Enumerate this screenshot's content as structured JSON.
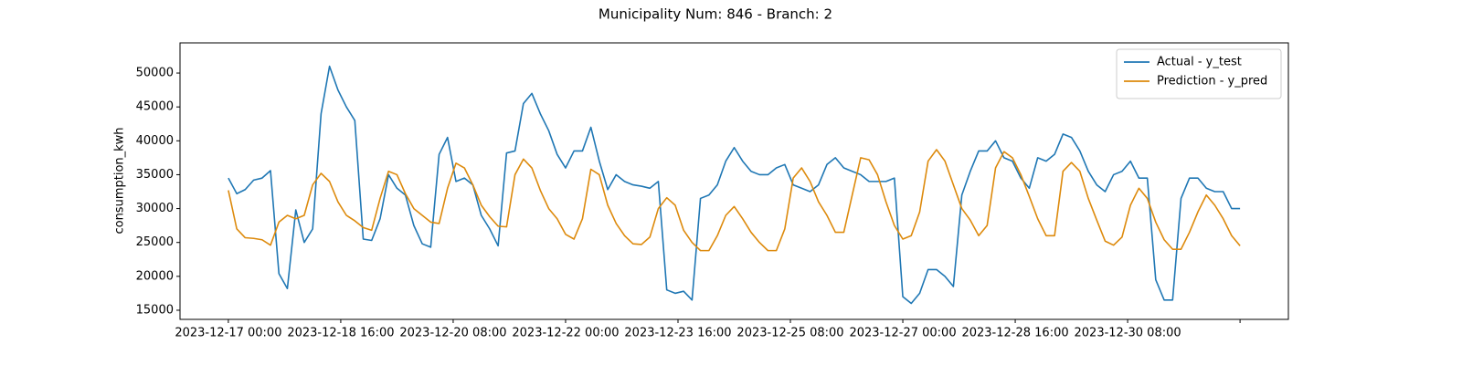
{
  "chart_data": {
    "type": "line",
    "title": "Municipality Num: 846 - Branch: 2",
    "y_label": "consumption_kwh",
    "legend": "upper right",
    "grid": false,
    "xlim": [
      "2023-12-16 06:48",
      "2024-01-01 17:12"
    ],
    "ylim": [
      13650,
      54450
    ],
    "yticks": [
      15000,
      20000,
      25000,
      30000,
      35000,
      40000,
      45000,
      50000
    ],
    "xticks": [
      "2023-12-17 00:00",
      "2023-12-18 16:00",
      "2023-12-20 08:00",
      "2023-12-22 00:00",
      "2023-12-23 16:00",
      "2023-12-25 08:00",
      "2023-12-27 00:00",
      "2023-12-28 16:00",
      "2023-12-30 08:00",
      {
        "value": "2024-01-01 00:00",
        "label": null
      }
    ],
    "x": [
      "2023-12-17 00:00",
      "2023-12-17 03:00",
      "2023-12-17 06:00",
      "2023-12-17 09:00",
      "2023-12-17 12:00",
      "2023-12-17 15:00",
      "2023-12-17 18:00",
      "2023-12-17 21:00",
      "2023-12-18 00:00",
      "2023-12-18 03:00",
      "2023-12-18 06:00",
      "2023-12-18 09:00",
      "2023-12-18 12:00",
      "2023-12-18 15:00",
      "2023-12-18 18:00",
      "2023-12-18 21:00",
      "2023-12-19 00:00",
      "2023-12-19 03:00",
      "2023-12-19 06:00",
      "2023-12-19 09:00",
      "2023-12-19 12:00",
      "2023-12-19 15:00",
      "2023-12-19 18:00",
      "2023-12-19 21:00",
      "2023-12-20 00:00",
      "2023-12-20 03:00",
      "2023-12-20 06:00",
      "2023-12-20 09:00",
      "2023-12-20 12:00",
      "2023-12-20 15:00",
      "2023-12-20 18:00",
      "2023-12-20 21:00",
      "2023-12-21 00:00",
      "2023-12-21 03:00",
      "2023-12-21 06:00",
      "2023-12-21 09:00",
      "2023-12-21 12:00",
      "2023-12-21 15:00",
      "2023-12-21 18:00",
      "2023-12-21 21:00",
      "2023-12-22 00:00",
      "2023-12-22 03:00",
      "2023-12-22 06:00",
      "2023-12-22 09:00",
      "2023-12-22 12:00",
      "2023-12-22 15:00",
      "2023-12-22 18:00",
      "2023-12-22 21:00",
      "2023-12-23 00:00",
      "2023-12-23 03:00",
      "2023-12-23 06:00",
      "2023-12-23 09:00",
      "2023-12-23 12:00",
      "2023-12-23 15:00",
      "2023-12-23 18:00",
      "2023-12-23 21:00",
      "2023-12-24 00:00",
      "2023-12-24 03:00",
      "2023-12-24 06:00",
      "2023-12-24 09:00",
      "2023-12-24 12:00",
      "2023-12-24 15:00",
      "2023-12-24 18:00",
      "2023-12-24 21:00",
      "2023-12-25 00:00",
      "2023-12-25 03:00",
      "2023-12-25 06:00",
      "2023-12-25 09:00",
      "2023-12-25 12:00",
      "2023-12-25 15:00",
      "2023-12-25 18:00",
      "2023-12-25 21:00",
      "2023-12-26 00:00",
      "2023-12-26 03:00",
      "2023-12-26 06:00",
      "2023-12-26 09:00",
      "2023-12-26 12:00",
      "2023-12-26 15:00",
      "2023-12-26 18:00",
      "2023-12-26 21:00",
      "2023-12-27 00:00",
      "2023-12-27 03:00",
      "2023-12-27 06:00",
      "2023-12-27 09:00",
      "2023-12-27 12:00",
      "2023-12-27 15:00",
      "2023-12-27 18:00",
      "2023-12-27 21:00",
      "2023-12-28 00:00",
      "2023-12-28 03:00",
      "2023-12-28 06:00",
      "2023-12-28 09:00",
      "2023-12-28 12:00",
      "2023-12-28 15:00",
      "2023-12-28 18:00",
      "2023-12-28 21:00",
      "2023-12-29 00:00",
      "2023-12-29 03:00",
      "2023-12-29 06:00",
      "2023-12-29 09:00",
      "2023-12-29 12:00",
      "2023-12-29 15:00",
      "2023-12-29 18:00",
      "2023-12-29 21:00",
      "2023-12-30 00:00",
      "2023-12-30 03:00",
      "2023-12-30 06:00",
      "2023-12-30 09:00",
      "2023-12-30 12:00",
      "2023-12-30 15:00",
      "2023-12-30 18:00",
      "2023-12-30 21:00",
      "2023-12-31 00:00",
      "2023-12-31 03:00",
      "2023-12-31 06:00",
      "2023-12-31 09:00",
      "2023-12-31 12:00",
      "2023-12-31 15:00",
      "2023-12-31 18:00",
      "2023-12-31 21:00",
      "2024-01-01 00:00"
    ],
    "series": [
      {
        "name": "Actual - y_test",
        "color": "#1f77b4",
        "values": [
          34500,
          32200,
          32800,
          34200,
          34500,
          35600,
          20400,
          18200,
          29800,
          25000,
          27000,
          44000,
          51000,
          47500,
          45000,
          43000,
          25500,
          25300,
          28500,
          35000,
          33000,
          32000,
          27500,
          24800,
          24300,
          38000,
          40500,
          34000,
          34500,
          33500,
          29000,
          27000,
          24500,
          38200,
          38500,
          45500,
          47000,
          44000,
          41500,
          38000,
          36000,
          38500,
          38500,
          42000,
          37000,
          32800,
          35000,
          34000,
          33500,
          33300,
          33000,
          34000,
          18000,
          17500,
          17800,
          16500,
          31500,
          32000,
          33500,
          37000,
          39000,
          37000,
          35500,
          35000,
          35000,
          36000,
          36500,
          33500,
          33000,
          32500,
          33500,
          36500,
          37500,
          36000,
          35500,
          35000,
          34000,
          34000,
          34000,
          34500,
          17000,
          16000,
          17500,
          21000,
          21000,
          20000,
          18500,
          32000,
          35500,
          38500,
          38500,
          40000,
          37500,
          37000,
          34500,
          33000,
          37500,
          37000,
          38000,
          41000,
          40500,
          38500,
          35500,
          33500,
          32500,
          35000,
          35500,
          37000,
          34500,
          34500,
          19500,
          16500,
          16500,
          31500,
          34500,
          34500,
          33000,
          32500,
          32500,
          30000,
          30000
        ]
      },
      {
        "name": "Prediction - y_pred",
        "color": "#dd8a0c",
        "values": [
          32700,
          27000,
          25700,
          25600,
          25400,
          24600,
          28000,
          29000,
          28500,
          29000,
          33500,
          35200,
          34000,
          31000,
          29000,
          28200,
          27200,
          26800,
          31500,
          35500,
          35000,
          32200,
          30000,
          29000,
          28000,
          27800,
          33000,
          36700,
          36000,
          33500,
          30500,
          28800,
          27400,
          27300,
          35000,
          37300,
          36000,
          32700,
          30000,
          28500,
          26200,
          25500,
          28500,
          35800,
          35000,
          30500,
          27800,
          26000,
          24800,
          24700,
          25800,
          30000,
          31600,
          30500,
          26800,
          25000,
          23800,
          23800,
          26000,
          29000,
          30300,
          28500,
          26500,
          25000,
          23800,
          23800,
          27000,
          34500,
          36000,
          34000,
          31000,
          29000,
          26500,
          26500,
          32000,
          37500,
          37200,
          35000,
          31000,
          27500,
          25500,
          26000,
          29500,
          37000,
          38700,
          37000,
          33500,
          30000,
          28300,
          26000,
          27500,
          36000,
          38400,
          37500,
          35000,
          31800,
          28500,
          26000,
          26000,
          35500,
          36800,
          35500,
          31500,
          28300,
          25200,
          24600,
          25800,
          30500,
          33000,
          31500,
          28000,
          25400,
          24000,
          24000,
          26500,
          29500,
          32000,
          30500,
          28500,
          26000,
          24500
        ]
      }
    ]
  }
}
